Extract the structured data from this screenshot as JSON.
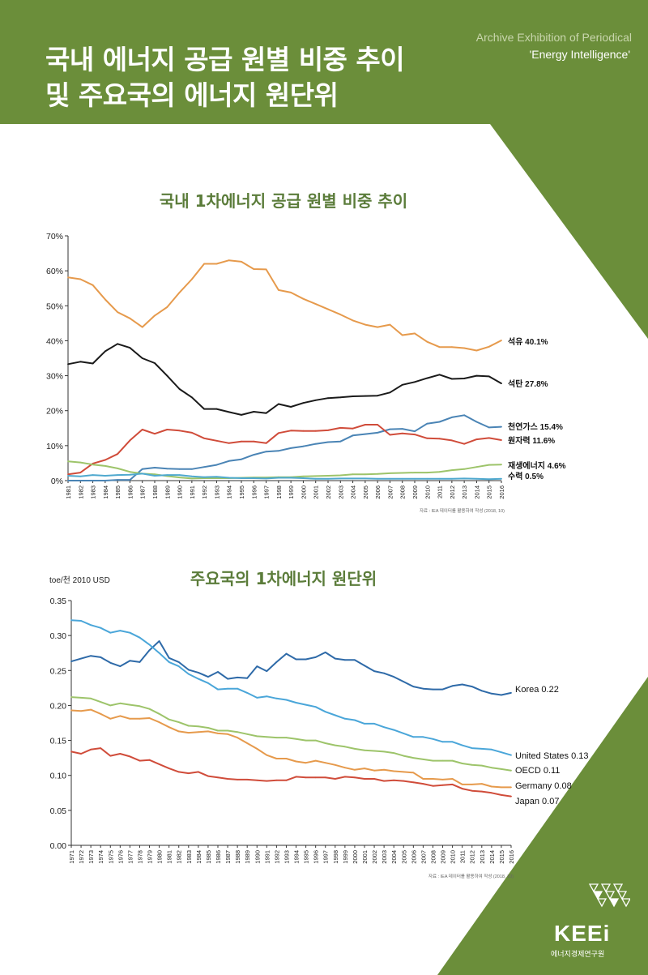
{
  "header": {
    "title_line1": "국내 에너지 공급 원별 비중 추이",
    "title_line2": "및 주요국의 에너지 원단위",
    "archive": "Archive Exhibition of Periodical",
    "publication": "'Energy Intelligence'"
  },
  "colors": {
    "green": "#6b8e3a",
    "title_green": "#5b7c3a"
  },
  "chart1": {
    "title": "국내 1차에너지 공급 원별 비중 추이",
    "source": "자료 : IEA 데이터를 활용하여 작성 (2018, 10)"
  },
  "chart2": {
    "title": "주요국의 1차에너지 원단위",
    "unit": "toe/천 2010 USD",
    "source": "자료 : IEA 데이터를 활용하여 작성 (2018, 10)"
  },
  "logo": {
    "name": "KEEi",
    "sub": "에너지경제연구원"
  },
  "chart_data": [
    {
      "type": "line",
      "title": "국내 1차에너지 공급 원별 비중 추이",
      "x": [
        1981,
        1982,
        1983,
        1984,
        1985,
        1986,
        1987,
        1988,
        1989,
        1990,
        1991,
        1992,
        1993,
        1994,
        1995,
        1996,
        1997,
        1998,
        1999,
        2000,
        2001,
        2002,
        2003,
        2004,
        2005,
        2006,
        2007,
        2008,
        2009,
        2010,
        2011,
        2012,
        2013,
        2014,
        2015,
        2016
      ],
      "ylim": [
        0,
        70
      ],
      "yticks": [
        "0%",
        "10%",
        "20%",
        "30%",
        "40%",
        "50%",
        "60%",
        "70%"
      ],
      "series": [
        {
          "name": "석유",
          "end_label": "석유  40.1%",
          "color": "#e69a4c",
          "values": [
            58.1,
            57.6,
            55.9,
            51.8,
            48.2,
            46.4,
            43.9,
            47.2,
            49.6,
            53.8,
            57.6,
            62.0,
            62.0,
            63.0,
            62.6,
            60.5,
            60.4,
            54.5,
            53.8,
            52.0,
            50.5,
            49.0,
            47.5,
            45.8,
            44.6,
            43.9,
            44.6,
            41.6,
            42.1,
            39.7,
            38.2,
            38.2,
            37.9,
            37.2,
            38.3,
            40.1
          ]
        },
        {
          "name": "석탄",
          "end_label": "석탄  27.8%",
          "color": "#1a1a1a",
          "values": [
            33.3,
            34.0,
            33.5,
            37.0,
            39.1,
            38.0,
            35.0,
            33.6,
            30.0,
            26.2,
            23.8,
            20.5,
            20.5,
            19.6,
            18.8,
            19.7,
            19.3,
            21.9,
            21.1,
            22.2,
            23.0,
            23.6,
            23.8,
            24.1,
            24.2,
            24.3,
            25.2,
            27.4,
            28.2,
            29.3,
            30.3,
            29.1,
            29.2,
            30.0,
            29.8,
            27.8
          ]
        },
        {
          "name": "천연가스",
          "end_label": "천연가스  15.4%",
          "color": "#4a84b5",
          "values": [
            0.0,
            0.0,
            0.0,
            0.0,
            0.2,
            0.2,
            3.3,
            3.7,
            3.4,
            3.3,
            3.3,
            3.9,
            4.5,
            5.6,
            6.1,
            7.4,
            8.3,
            8.5,
            9.3,
            9.8,
            10.5,
            11.0,
            11.2,
            12.9,
            13.3,
            13.7,
            14.7,
            14.8,
            14.1,
            16.3,
            16.8,
            18.1,
            18.7,
            16.8,
            15.2,
            15.4
          ]
        },
        {
          "name": "원자력",
          "end_label": "원자력  11.6%",
          "color": "#d04c3a",
          "values": [
            1.8,
            2.3,
            4.9,
            5.9,
            7.6,
            11.5,
            14.6,
            13.4,
            14.6,
            14.3,
            13.7,
            12.1,
            11.4,
            10.7,
            11.2,
            11.2,
            10.7,
            13.6,
            14.3,
            14.2,
            14.2,
            14.4,
            15.1,
            14.9,
            16.0,
            16.0,
            13.1,
            13.5,
            13.2,
            12.1,
            12.0,
            11.5,
            10.5,
            11.8,
            12.2,
            11.6
          ]
        },
        {
          "name": "재생에너지",
          "end_label": "재생에너지  4.6%",
          "color": "#9dc46a",
          "values": [
            5.5,
            5.2,
            4.6,
            4.2,
            3.5,
            2.5,
            2.0,
            1.8,
            1.3,
            0.9,
            0.6,
            0.7,
            0.7,
            0.7,
            0.8,
            0.9,
            0.9,
            1.0,
            1.0,
            1.2,
            1.3,
            1.4,
            1.5,
            1.8,
            1.8,
            1.9,
            2.1,
            2.2,
            2.3,
            2.3,
            2.5,
            3.0,
            3.3,
            3.9,
            4.5,
            4.6
          ]
        },
        {
          "name": "수력",
          "end_label": "수력  0.5%",
          "color": "#4fa9cf",
          "values": [
            1.4,
            1.2,
            1.6,
            1.4,
            1.6,
            1.7,
            2.0,
            1.4,
            1.6,
            1.6,
            1.2,
            1.0,
            1.1,
            0.8,
            0.7,
            0.7,
            0.6,
            0.8,
            0.8,
            0.7,
            0.5,
            0.5,
            0.6,
            0.6,
            0.6,
            0.5,
            0.5,
            0.5,
            0.5,
            0.5,
            0.5,
            0.5,
            0.6,
            0.5,
            0.4,
            0.5
          ]
        }
      ]
    },
    {
      "type": "line",
      "title": "주요국의 1차에너지 원단위",
      "ylabel": "toe/천 2010 USD",
      "x": [
        1971,
        1972,
        1973,
        1974,
        1975,
        1976,
        1977,
        1978,
        1979,
        1980,
        1981,
        1982,
        1983,
        1984,
        1985,
        1986,
        1987,
        1988,
        1989,
        1990,
        1991,
        1992,
        1993,
        1994,
        1995,
        1996,
        1997,
        1998,
        1999,
        2000,
        2001,
        2002,
        2003,
        2004,
        2005,
        2006,
        2007,
        2008,
        2009,
        2010,
        2011,
        2012,
        2013,
        2014,
        2015,
        2016
      ],
      "ylim": [
        0,
        0.35
      ],
      "yticks": [
        "0.00",
        "0.05",
        "0.10",
        "0.15",
        "0.20",
        "0.25",
        "0.30",
        "0.35"
      ],
      "series": [
        {
          "name": "Korea",
          "end_label": "Korea  0.22",
          "color": "#2e6aa8",
          "values": [
            0.263,
            0.267,
            0.271,
            0.269,
            0.261,
            0.256,
            0.264,
            0.262,
            0.279,
            0.292,
            0.268,
            0.262,
            0.251,
            0.247,
            0.241,
            0.248,
            0.238,
            0.24,
            0.239,
            0.256,
            0.249,
            0.262,
            0.274,
            0.266,
            0.266,
            0.269,
            0.276,
            0.267,
            0.265,
            0.265,
            0.257,
            0.249,
            0.246,
            0.241,
            0.234,
            0.227,
            0.224,
            0.223,
            0.223,
            0.228,
            0.23,
            0.227,
            0.221,
            0.217,
            0.215,
            0.218
          ]
        },
        {
          "name": "United States",
          "end_label": "United States  0.13",
          "color": "#4aa6d9",
          "values": [
            0.322,
            0.321,
            0.315,
            0.311,
            0.304,
            0.307,
            0.304,
            0.297,
            0.287,
            0.275,
            0.262,
            0.256,
            0.245,
            0.238,
            0.232,
            0.223,
            0.224,
            0.224,
            0.218,
            0.211,
            0.213,
            0.21,
            0.208,
            0.204,
            0.201,
            0.198,
            0.191,
            0.186,
            0.181,
            0.179,
            0.174,
            0.174,
            0.169,
            0.165,
            0.16,
            0.155,
            0.155,
            0.152,
            0.148,
            0.148,
            0.143,
            0.139,
            0.138,
            0.137,
            0.133,
            0.129
          ]
        },
        {
          "name": "OECD",
          "end_label": "OECD  0.11",
          "color": "#9dc46a",
          "values": [
            0.212,
            0.211,
            0.21,
            0.205,
            0.2,
            0.203,
            0.201,
            0.199,
            0.195,
            0.188,
            0.18,
            0.176,
            0.171,
            0.17,
            0.168,
            0.164,
            0.164,
            0.162,
            0.159,
            0.156,
            0.155,
            0.154,
            0.154,
            0.152,
            0.15,
            0.15,
            0.146,
            0.143,
            0.141,
            0.138,
            0.136,
            0.135,
            0.134,
            0.132,
            0.128,
            0.125,
            0.123,
            0.121,
            0.121,
            0.121,
            0.117,
            0.115,
            0.114,
            0.111,
            0.109,
            0.107
          ]
        },
        {
          "name": "Germany",
          "end_label": "Germany  0.08",
          "color": "#e69a4c",
          "values": [
            0.193,
            0.192,
            0.194,
            0.188,
            0.181,
            0.185,
            0.181,
            0.181,
            0.182,
            0.176,
            0.169,
            0.163,
            0.161,
            0.162,
            0.163,
            0.16,
            0.159,
            0.154,
            0.146,
            0.138,
            0.129,
            0.124,
            0.124,
            0.12,
            0.118,
            0.121,
            0.118,
            0.115,
            0.111,
            0.108,
            0.11,
            0.107,
            0.108,
            0.106,
            0.105,
            0.104,
            0.095,
            0.095,
            0.094,
            0.095,
            0.087,
            0.087,
            0.088,
            0.084,
            0.083,
            0.083
          ]
        },
        {
          "name": "Japan",
          "end_label": "Japan  0.07",
          "color": "#d04c3a",
          "values": [
            0.134,
            0.131,
            0.137,
            0.139,
            0.128,
            0.131,
            0.127,
            0.121,
            0.122,
            0.116,
            0.11,
            0.105,
            0.103,
            0.105,
            0.099,
            0.097,
            0.095,
            0.094,
            0.094,
            0.093,
            0.092,
            0.093,
            0.093,
            0.098,
            0.097,
            0.097,
            0.097,
            0.095,
            0.098,
            0.097,
            0.095,
            0.095,
            0.092,
            0.093,
            0.092,
            0.09,
            0.088,
            0.085,
            0.086,
            0.087,
            0.081,
            0.078,
            0.077,
            0.075,
            0.072,
            0.07
          ]
        }
      ]
    }
  ]
}
